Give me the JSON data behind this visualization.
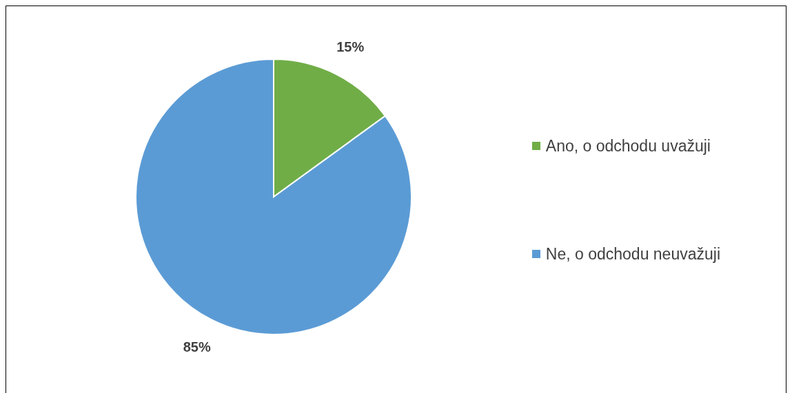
{
  "chart_data": {
    "type": "pie",
    "categories": [
      "Ano, o odchodu uvažuji",
      "Ne, o odchodu neuvažuji"
    ],
    "values": [
      15,
      85
    ],
    "colors": [
      "#70ad47",
      "#5b9bd5"
    ],
    "value_labels": [
      "15%",
      "85%"
    ],
    "legend": "right"
  }
}
